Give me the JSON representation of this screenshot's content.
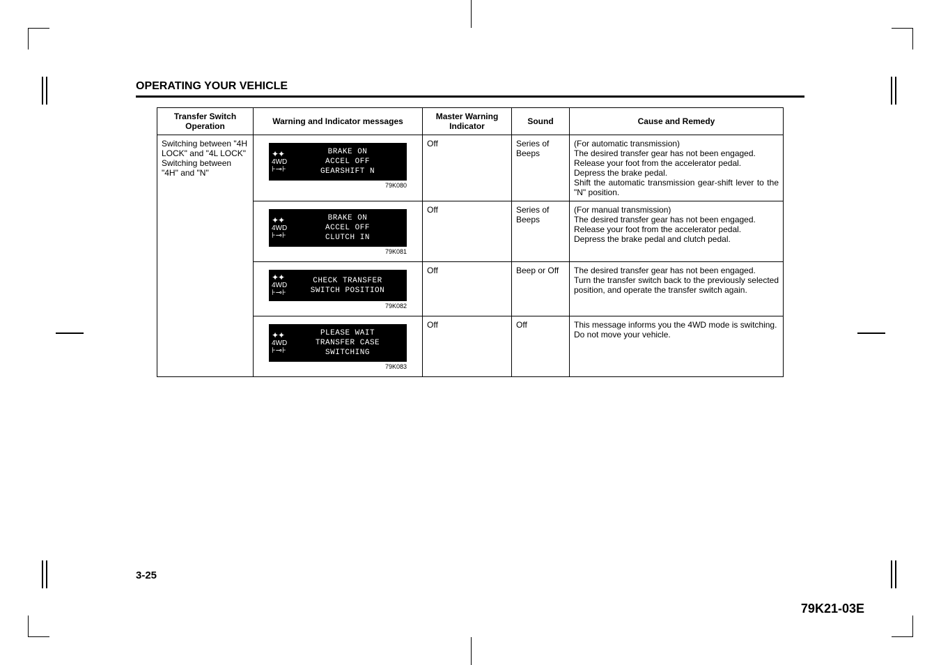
{
  "section_title": "OPERATING YOUR VEHICLE",
  "page_number": "3-25",
  "document_code": "79K21-03E",
  "table": {
    "headers": {
      "operation": "Transfer Switch\nOperation",
      "warning": "Warning and Indicator messages",
      "mwi": "Master Warning\nIndicator",
      "sound": "Sound",
      "cause": "Cause and Remedy"
    },
    "operation_text": "Switching between \"4H LOCK\" and \"4L LOCK\"\nSwitching between \"4H\" and \"N\"",
    "rows": [
      {
        "msg_lines": "BRAKE ON\nACCEL OFF\nGEARSHIFT N",
        "img_code": "79K080",
        "mwi": "Off",
        "sound": "Series of Beeps",
        "cause": "(For automatic transmission)\nThe desired transfer gear has not been engaged.\nRelease your foot from the accelerator pedal.\nDepress the brake pedal.\nShift the automatic transmission gear-shift lever to the \"N\" position."
      },
      {
        "msg_lines": "BRAKE ON\nACCEL OFF\nCLUTCH IN",
        "img_code": "79K081",
        "mwi": "Off",
        "sound": "Series of Beeps",
        "cause": "(For manual transmission)\nThe desired transfer gear has not been engaged.\nRelease your foot from the accelerator pedal.\nDepress the brake pedal and clutch pedal."
      },
      {
        "msg_lines": "CHECK TRANSFER\nSWITCH POSITION",
        "img_code": "79K082",
        "mwi": "Off",
        "sound": "Beep or Off",
        "cause": "The desired transfer gear has not been engaged.\nTurn the transfer switch back to the previously selected position, and operate the transfer switch again."
      },
      {
        "msg_lines": "PLEASE WAIT\nTRANSFER CASE\nSWITCHING",
        "img_code": "79K083",
        "mwi": "Off",
        "sound": "Off",
        "cause": "This message informs you the 4WD mode is switching.\nDo not move your vehicle."
      }
    ]
  },
  "icon_label_top": "4WD"
}
